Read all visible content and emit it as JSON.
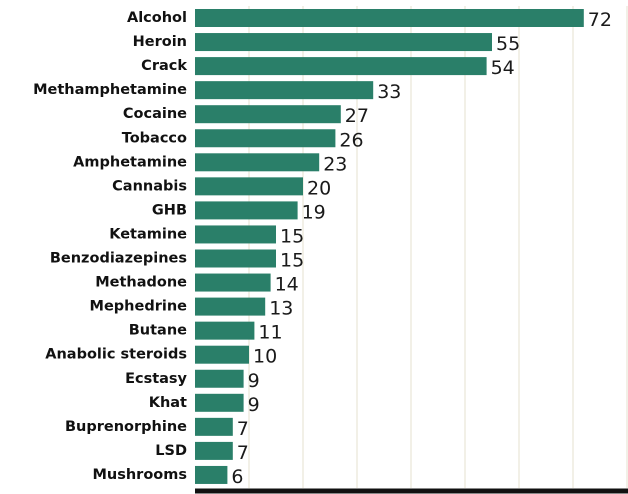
{
  "chart_data": {
    "type": "bar",
    "orientation": "horizontal",
    "categories": [
      "Alcohol",
      "Heroin",
      "Crack",
      "Methamphetamine",
      "Cocaine",
      "Tobacco",
      "Amphetamine",
      "Cannabis",
      "GHB",
      "Ketamine",
      "Benzodiazepines",
      "Methadone",
      "Mephedrine",
      "Butane",
      "Anabolic steroids",
      "Ecstasy",
      "Khat",
      "Buprenorphine",
      "LSD",
      "Mushrooms"
    ],
    "values": [
      72,
      55,
      54,
      33,
      27,
      26,
      23,
      20,
      19,
      15,
      15,
      14,
      13,
      11,
      10,
      9,
      9,
      7,
      7,
      6
    ],
    "title": "",
    "xlabel": "",
    "ylabel": "",
    "xlim": [
      0,
      80
    ],
    "grid": true,
    "grid_step": 10,
    "legend": "none",
    "bar_color": "#2a7f69",
    "grid_color": "#e5e1cf",
    "axis_color": "#111111"
  }
}
